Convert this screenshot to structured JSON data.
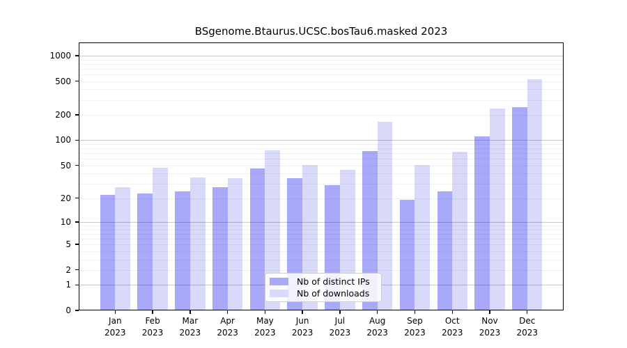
{
  "figure": {
    "title": "BSgenome.Btaurus.UCSC.bosTau6.masked 2023"
  },
  "chart_data": {
    "type": "bar",
    "title": "BSgenome.Btaurus.UCSC.bosTau6.masked 2023",
    "categories": [
      "Jan 2023",
      "Feb 2023",
      "Mar 2023",
      "Apr 2023",
      "May 2023",
      "Jun 2023",
      "Jul 2023",
      "Aug 2023",
      "Sep 2023",
      "Oct 2023",
      "Nov 2023",
      "Dec 2023"
    ],
    "series": [
      {
        "name": "Nb of distinct IPs",
        "color": "#a9a9fa",
        "values": [
          22,
          23,
          24,
          27,
          46,
          35,
          29,
          75,
          19,
          24,
          110,
          246
        ]
      },
      {
        "name": "Nb of downloads",
        "color": "#d9d9fa",
        "values": [
          27,
          47,
          36,
          35,
          76,
          51,
          44,
          167,
          51,
          73,
          239,
          527
        ]
      }
    ],
    "yscale": "log10(1+y)",
    "yticks": [
      0,
      1,
      2,
      5,
      10,
      20,
      50,
      100,
      200,
      500,
      1000
    ],
    "ytick_labels": [
      "0",
      "1",
      "2",
      "5",
      "10",
      "20",
      "50",
      "100",
      "200",
      "500",
      "1000"
    ],
    "ylim": [
      0,
      1400
    ],
    "xlabel": "",
    "ylabel": "",
    "grid": true,
    "legend_position": "lower center"
  },
  "legend": {
    "items": [
      {
        "label": "Nb of distinct IPs"
      },
      {
        "label": "Nb of downloads"
      }
    ]
  }
}
